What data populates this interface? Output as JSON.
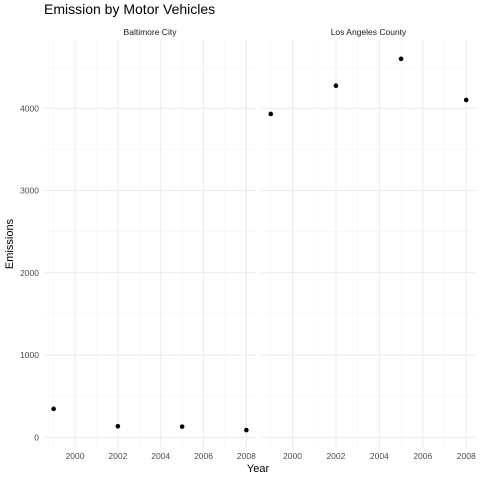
{
  "chart_data": {
    "type": "scatter",
    "title": "Emission by Motor Vehicles",
    "xlabel": "Year",
    "ylabel": "Emissions",
    "xlim": [
      1998.55,
      2008.45
    ],
    "ylim": [
      -130,
      4830
    ],
    "x_ticks": [
      2000,
      2002,
      2004,
      2006,
      2008
    ],
    "y_ticks": [
      0,
      1000,
      2000,
      3000,
      4000
    ],
    "grid": true,
    "point_color": "#000000",
    "facets": [
      {
        "name": "Baltimore City",
        "points": [
          {
            "x": 1999,
            "y": 346
          },
          {
            "x": 2002,
            "y": 134
          },
          {
            "x": 2005,
            "y": 130
          },
          {
            "x": 2008,
            "y": 88
          }
        ]
      },
      {
        "name": "Los Angeles County",
        "points": [
          {
            "x": 1999,
            "y": 3931
          },
          {
            "x": 2002,
            "y": 4274
          },
          {
            "x": 2005,
            "y": 4601
          },
          {
            "x": 2008,
            "y": 4101
          }
        ]
      }
    ]
  }
}
